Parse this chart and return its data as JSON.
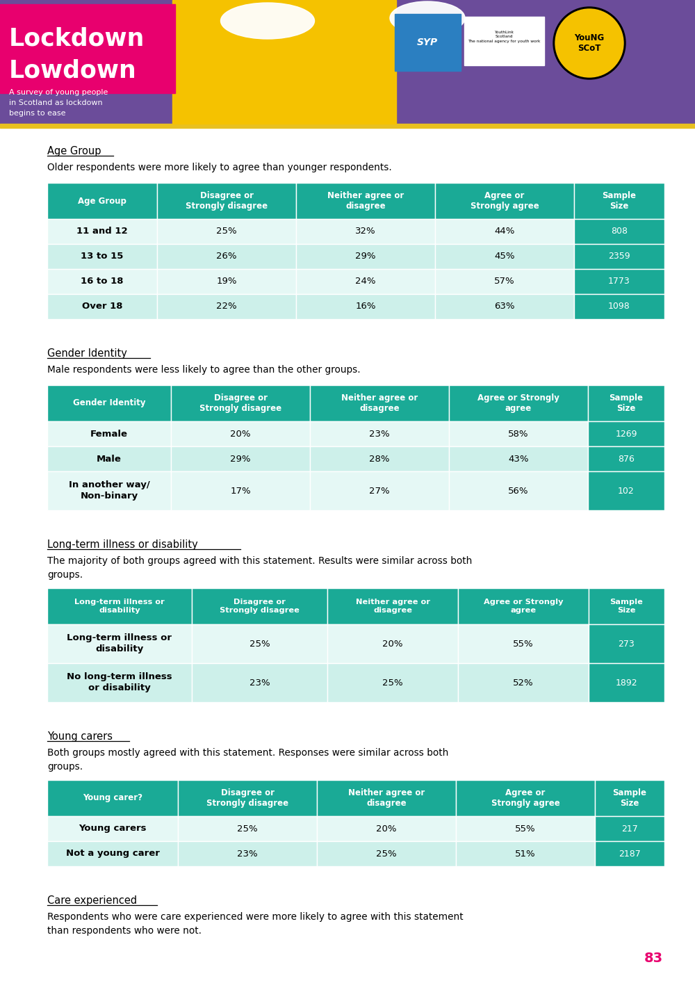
{
  "page_bg": "#ffffff",
  "header_bg": "#6b4c9a",
  "header_pink": "#e8006e",
  "header_yellow": "#f5c200",
  "teal_dark": "#1aaa96",
  "teal_even": "#e0f5f2",
  "teal_odd": "#c5ebe6",
  "page_num_color": "#e8006e",
  "page_num": "83",
  "s1_title": "Age Group",
  "s1_desc": "Older respondents were more likely to agree than younger respondents.",
  "s1_headers": [
    "Age Group",
    "Disagree or\nStrongly disagree",
    "Neither agree or\ndisagree",
    "Agree or\nStrongly agree",
    "Sample\nSize"
  ],
  "s1_rows": [
    [
      "11 and 12",
      "25%",
      "32%",
      "44%",
      "808"
    ],
    [
      "13 to 15",
      "26%",
      "29%",
      "45%",
      "2359"
    ],
    [
      "16 to 18",
      "19%",
      "24%",
      "57%",
      "1773"
    ],
    [
      "Over 18",
      "22%",
      "16%",
      "63%",
      "1098"
    ]
  ],
  "s2_title": "Gender Identity",
  "s2_desc": "Male respondents were less likely to agree than the other groups.",
  "s2_headers": [
    "Gender Identity",
    "Disagree or\nStrongly disagree",
    "Neither agree or\ndisagree",
    "Agree or Strongly\nagree",
    "Sample\nSize"
  ],
  "s2_rows": [
    [
      "Female",
      "20%",
      "23%",
      "58%",
      "1269"
    ],
    [
      "Male",
      "29%",
      "28%",
      "43%",
      "876"
    ],
    [
      "In another way/\nNon-binary",
      "17%",
      "27%",
      "56%",
      "102"
    ]
  ],
  "s3_title": "Long-term illness or disability",
  "s3_desc": "The majority of both groups agreed with this statement. Results were similar across both\ngroups.",
  "s3_headers": [
    "Long-term illness or\ndisability",
    "Disagree or\nStrongly disagree",
    "Neither agree or\ndisagree",
    "Agree or Strongly\nagree",
    "Sample\nSize"
  ],
  "s3_rows": [
    [
      "Long-term illness or\ndisability",
      "25%",
      "20%",
      "55%",
      "273"
    ],
    [
      "No long-term illness\nor disability",
      "23%",
      "25%",
      "52%",
      "1892"
    ]
  ],
  "s4_title": "Young carers",
  "s4_desc": "Both groups mostly agreed with this statement. Responses were similar across both\ngroups.",
  "s4_headers": [
    "Young carer?",
    "Disagree or\nStrongly disagree",
    "Neither agree or\ndisagree",
    "Agree or\nStrongly agree",
    "Sample\nSize"
  ],
  "s4_rows": [
    [
      "Young carers",
      "25%",
      "20%",
      "55%",
      "217"
    ],
    [
      "Not a young carer",
      "23%",
      "25%",
      "51%",
      "2187"
    ]
  ],
  "s5_title": "Care experienced",
  "s5_desc": "Respondents who were care experienced were more likely to agree with this statement\nthan respondents who were not.",
  "title_underline_widths": {
    "Age Group": 95,
    "Gender Identity": 148,
    "Long-term illness or disability": 278,
    "Young carers": 118,
    "Care experienced": 158
  }
}
